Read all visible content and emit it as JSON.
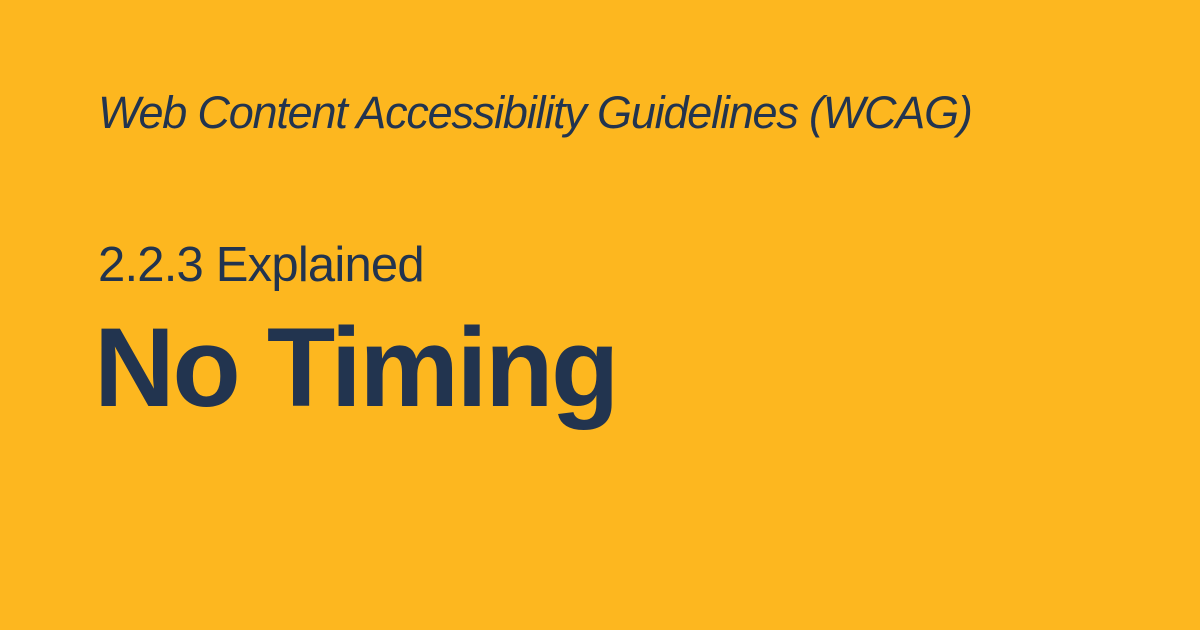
{
  "colors": {
    "background": "#FDB71F",
    "text": "#22344F"
  },
  "header": {
    "subtitle": "Web Content Accessibility Guidelines (WCAG)"
  },
  "main": {
    "section_label": "2.2.3 Explained",
    "title": "No Timing"
  }
}
